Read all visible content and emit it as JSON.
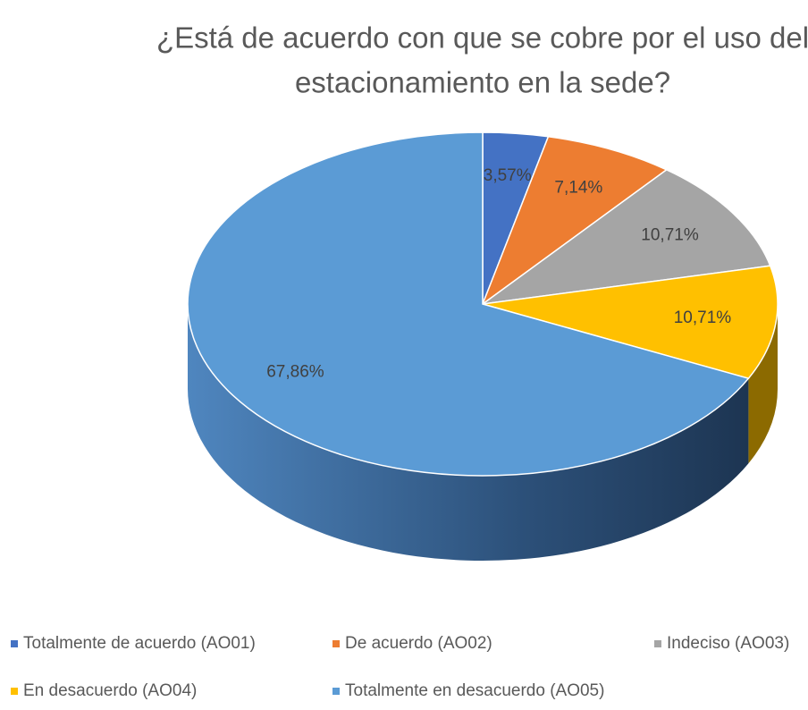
{
  "chart_data": {
    "type": "pie",
    "title": [
      "¿Está de acuerdo con que se cobre por el uso del",
      "estacionamiento en la sede?"
    ],
    "categories": [
      "Totalmente de acuerdo (AO01)",
      "De acuerdo (AO02)",
      "Indeciso (AO03)",
      "En desacuerdo (AO04)",
      "Totalmente en desacuerdo (AO05)"
    ],
    "values": [
      3.57,
      7.14,
      10.71,
      10.71,
      67.86
    ],
    "value_labels": [
      "3,57%",
      "7,14%",
      "10,71%",
      "10,71%",
      "67,86%"
    ],
    "colors": [
      "#4472c4",
      "#ed7d31",
      "#a5a5a5",
      "#ffc000",
      "#5b9bd5"
    ],
    "legend": "bottom"
  }
}
